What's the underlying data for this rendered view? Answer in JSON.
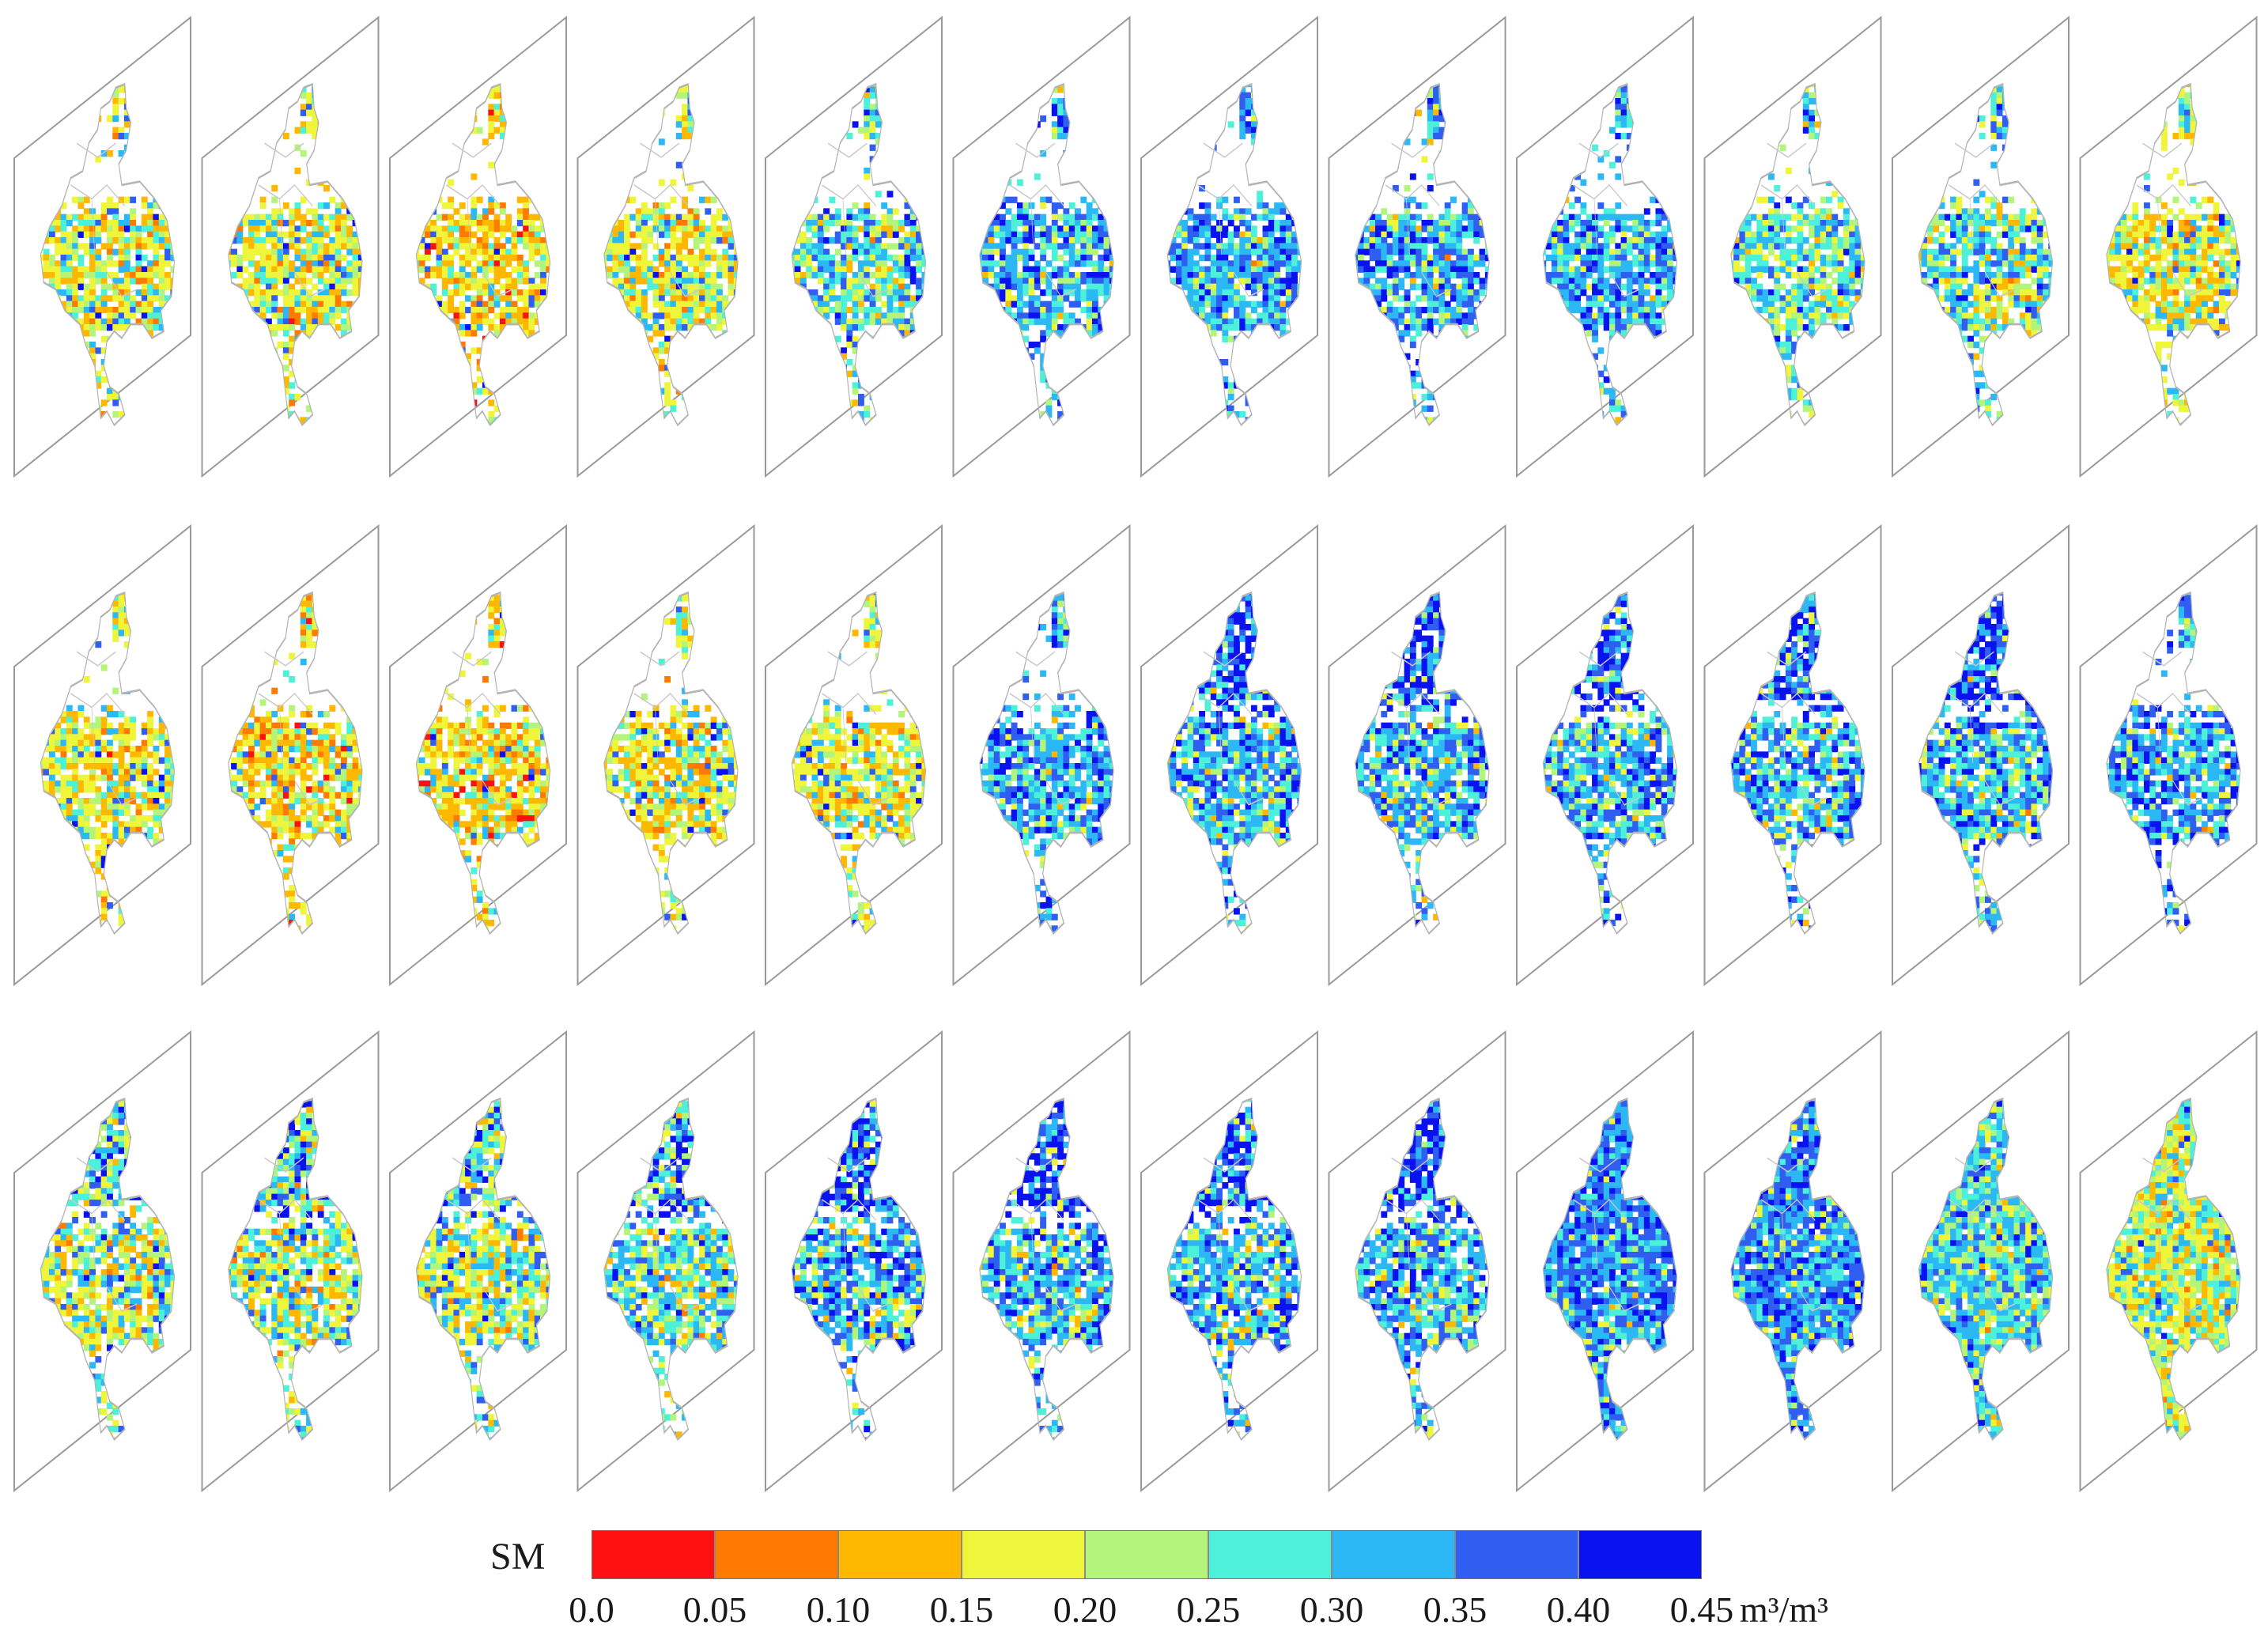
{
  "figure": {
    "grid_rows": 3,
    "grid_cols": 12,
    "panels": [
      "dry",
      "dry",
      "verydry",
      "dry",
      "mid",
      "wet",
      "wet",
      "wet",
      "wet",
      "mid",
      "mid",
      "dry",
      "dry",
      "verydry",
      "verydry",
      "dry",
      "dry",
      "wet",
      "wetnorth",
      "wetnorth",
      "wetnorth",
      "wetnorth",
      "wetnorth",
      "wetlight",
      "drynorth",
      "drynorth",
      "drynorth",
      "midnorth",
      "wetnorth",
      "wetnorth",
      "wetnorth",
      "wetnorth",
      "fullwet",
      "fullwet",
      "fullmid",
      "fulldry"
    ]
  },
  "legend": {
    "title": "SM",
    "unit": "m³/m³",
    "ticks": [
      "0.0",
      "0.05",
      "0.10",
      "0.15",
      "0.20",
      "0.25",
      "0.30",
      "0.35",
      "0.40",
      "0.45"
    ],
    "bins": [
      {
        "range": "0.0–0.05",
        "color": "#ff1010"
      },
      {
        "range": "0.05–0.10",
        "color": "#ff7a00"
      },
      {
        "range": "0.10–0.15",
        "color": "#ffb800"
      },
      {
        "range": "0.15–0.20",
        "color": "#eef53a"
      },
      {
        "range": "0.20–0.25",
        "color": "#b2f57a"
      },
      {
        "range": "0.25–0.30",
        "color": "#4df0d8"
      },
      {
        "range": "0.30–0.35",
        "color": "#2cb8f5"
      },
      {
        "range": "0.35–0.40",
        "color": "#2f5ef0"
      },
      {
        "range": "0.40–0.45",
        "color": "#0a12f0"
      }
    ]
  }
}
